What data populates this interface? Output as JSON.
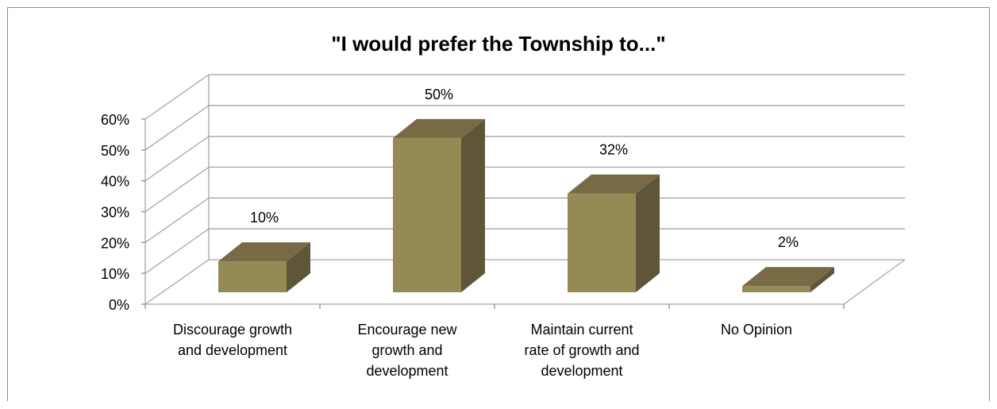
{
  "chart_data": {
    "type": "bar",
    "title": "\"I would prefer the Township to...\"",
    "categories": [
      [
        "Discourage growth",
        "and development"
      ],
      [
        "Encourage new",
        "growth and",
        "development"
      ],
      [
        "Maintain current",
        "rate of growth and",
        "development"
      ],
      [
        "No Opinion"
      ]
    ],
    "values": [
      10,
      50,
      32,
      2
    ],
    "data_labels": [
      "10%",
      "50%",
      "32%",
      "2%"
    ],
    "ylim": [
      0,
      60
    ],
    "yticks": [
      0,
      10,
      20,
      30,
      40,
      50,
      60
    ],
    "ytick_labels": [
      "0%",
      "10%",
      "20%",
      "30%",
      "40%",
      "50%",
      "60%"
    ],
    "grid": true,
    "legend": false,
    "style": "3d-column",
    "colors": {
      "bar_front": "#948a54",
      "bar_top": "#786a45",
      "bar_side": "#5e5638",
      "grid": "#a6a6a6"
    }
  }
}
